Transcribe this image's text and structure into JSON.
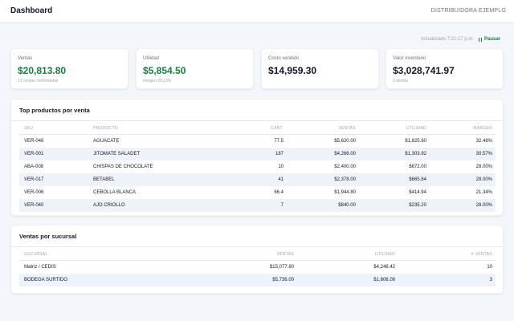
{
  "header": {
    "title": "Dashboard",
    "company": "DISTRIBUIDORA EJEMPLO"
  },
  "status": {
    "updated": "Actualizado 7:21:17 p.m.",
    "pause_label": "Pausar"
  },
  "kpis": [
    {
      "label": "Ventas",
      "value": "$20,813.80",
      "sub": "13 ventas confirmadas",
      "accent": "#15803d"
    },
    {
      "label": "Utilidad",
      "value": "$5,854.50",
      "sub": "margen 28.13%",
      "accent": "#15803d"
    },
    {
      "label": "Costo vendido",
      "value": "$14,959.30",
      "sub": ""
    },
    {
      "label": "Valor inventario",
      "value": "$3,028,741.97",
      "sub": "0 alertas"
    }
  ],
  "top_products": {
    "title": "Top productos por venta",
    "columns": [
      "SKU",
      "PRODUCTO",
      "CANT.",
      "VENTAS",
      "UTILIDAD",
      "MARGEN"
    ],
    "rows": [
      [
        "VER-046",
        "AGUACATE",
        "77.5",
        "$5,620.00",
        "$1,825.60",
        "32.48%"
      ],
      [
        "VER-001",
        "JITOMATE SALADET",
        "187",
        "$4,266.00",
        "$1,303.92",
        "30.57%"
      ],
      [
        "ABA-008",
        "CHISPAS DE CHOCOLATE",
        "10",
        "$2,400.00",
        "$672.00",
        "28.00%"
      ],
      [
        "VER-017",
        "BETABEL",
        "41",
        "$2,378.00",
        "$665.84",
        "28.00%"
      ],
      [
        "VER-006",
        "CEBOLLA BLANCA",
        "66.4",
        "$1,944.80",
        "$414.94",
        "21.34%"
      ],
      [
        "VER-040",
        "AJO CRIOLLO",
        "7",
        "$840.00",
        "$235.20",
        "28.00%"
      ]
    ]
  },
  "branches": {
    "title": "Ventas por sucursal",
    "columns": [
      "SUCURSAL",
      "VENTAS",
      "UTILIDAD",
      "# VENTAS"
    ],
    "rows": [
      [
        "Matriz / CEDIS",
        "$15,077.80",
        "$4,248.42",
        "10"
      ],
      [
        "BODEGA SURTIDO",
        "$5,736.00",
        "$1,606.08",
        "3"
      ]
    ]
  },
  "colors": {
    "accent_green": "#15803d",
    "row_alt": "#edf3f8",
    "background": "#f3f6fa"
  }
}
